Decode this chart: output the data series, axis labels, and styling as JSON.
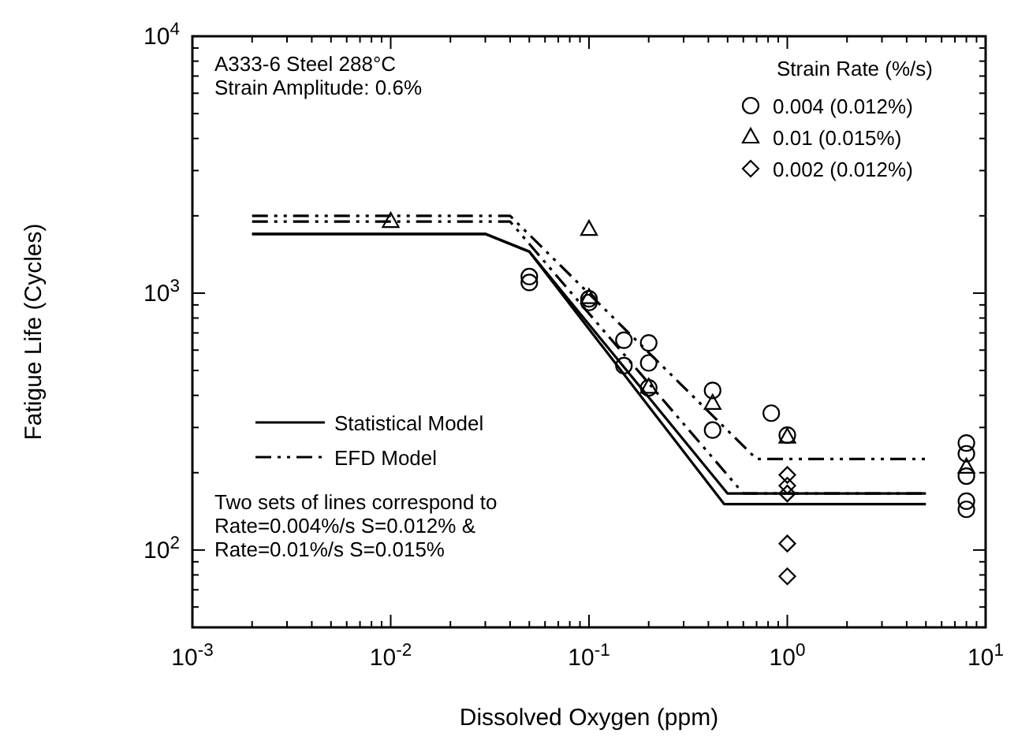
{
  "chart_data": {
    "type": "scatter",
    "xlabel": "Dissolved Oxygen (ppm)",
    "ylabel": "Fatigue Life (Cycles)",
    "legend_title": "Strain Rate (%/s)",
    "log": "xy",
    "legend": "top right",
    "grid": false,
    "xlim": [
      0.001,
      10
    ],
    "ylim": [
      50,
      10000
    ],
    "xticks": [
      {
        "value": 0.001,
        "label": "10$^{-3}$"
      },
      {
        "value": 0.002,
        "label": null
      },
      {
        "value": 0.003,
        "label": null
      },
      {
        "value": 0.004,
        "label": null
      },
      {
        "value": 0.005,
        "label": null
      },
      {
        "value": 0.006,
        "label": null
      },
      {
        "value": 0.007,
        "label": null
      },
      {
        "value": 0.008,
        "label": null
      },
      {
        "value": 0.009,
        "label": null
      },
      {
        "value": 0.01,
        "label": "10$^{-2}$"
      },
      {
        "value": 0.02,
        "label": null
      },
      {
        "value": 0.03,
        "label": null
      },
      {
        "value": 0.04,
        "label": null
      },
      {
        "value": 0.05,
        "label": null
      },
      {
        "value": 0.06,
        "label": null
      },
      {
        "value": 0.07,
        "label": null
      },
      {
        "value": 0.08,
        "label": null
      },
      {
        "value": 0.09,
        "label": null
      },
      {
        "value": 0.1,
        "label": "10$^{-1}$"
      },
      {
        "value": 0.2,
        "label": null
      },
      {
        "value": 0.3,
        "label": null
      },
      {
        "value": 0.4,
        "label": null
      },
      {
        "value": 0.5,
        "label": null
      },
      {
        "value": 0.6,
        "label": null
      },
      {
        "value": 0.7,
        "label": null
      },
      {
        "value": 0.8,
        "label": null
      },
      {
        "value": 0.9,
        "label": null
      },
      {
        "value": 1,
        "label": "10$^{0}$"
      },
      {
        "value": 2,
        "label": null
      },
      {
        "value": 3,
        "label": null
      },
      {
        "value": 4,
        "label": null
      },
      {
        "value": 5,
        "label": null
      },
      {
        "value": 6,
        "label": null
      },
      {
        "value": 7,
        "label": null
      },
      {
        "value": 8,
        "label": null
      },
      {
        "value": 9,
        "label": null
      },
      {
        "value": 10,
        "label": "10$^{1}$"
      }
    ],
    "yticks": [
      {
        "value": 60,
        "label": null
      },
      {
        "value": 70,
        "label": null
      },
      {
        "value": 80,
        "label": null
      },
      {
        "value": 90,
        "label": null
      },
      {
        "value": 100,
        "label": "10$^{2}$"
      },
      {
        "value": 200,
        "label": null
      },
      {
        "value": 300,
        "label": null
      },
      {
        "value": 400,
        "label": null
      },
      {
        "value": 500,
        "label": null
      },
      {
        "value": 600,
        "label": null
      },
      {
        "value": 700,
        "label": null
      },
      {
        "value": 800,
        "label": null
      },
      {
        "value": 900,
        "label": null
      },
      {
        "value": 1000,
        "label": "10$^{3}$"
      },
      {
        "value": 2000,
        "label": null
      },
      {
        "value": 3000,
        "label": null
      },
      {
        "value": 4000,
        "label": null
      },
      {
        "value": 5000,
        "label": null
      },
      {
        "value": 6000,
        "label": null
      },
      {
        "value": 7000,
        "label": null
      },
      {
        "value": 8000,
        "label": null
      },
      {
        "value": 9000,
        "label": null
      },
      {
        "value": 10000,
        "label": "10$^{4}$"
      }
    ],
    "annotations": [
      "A333-6 Steel 288°C",
      "Strain Amplitude: 0.6%",
      "Two sets of lines correspond to",
      "Rate=0.004%/s  S=0.012% &",
      "Rate=0.01%/s  S=0.015%"
    ],
    "series": [
      {
        "name": "0.004 (0.012%)",
        "marker": "circle",
        "color": "#000000",
        "x": [
          0.05,
          0.05,
          0.1,
          0.1,
          0.15,
          0.2,
          0.15,
          0.2,
          0.2,
          0.42,
          0.42,
          0.83,
          1,
          8,
          8,
          8,
          8,
          8
        ],
        "values": [
          1100,
          1160,
          950,
          920,
          656,
          640,
          522,
          535,
          428,
          418,
          293,
          341,
          280,
          261,
          237,
          194,
          155,
          144
        ]
      },
      {
        "name": "0.01 (0.015%)",
        "marker": "triangle",
        "color": "#000000",
        "x": [
          0.01,
          0.1,
          0.1,
          0.2,
          0.42,
          1,
          8
        ],
        "values": [
          1900,
          1770,
          960,
          430,
          372,
          275,
          210
        ]
      },
      {
        "name": "0.002 (0.012%)",
        "marker": "diamond",
        "color": "#000000",
        "x": [
          1,
          1,
          1,
          1,
          1
        ],
        "values": [
          196,
          178,
          166,
          106,
          79
        ]
      },
      {
        "name": "Statistical Model",
        "type": "line",
        "line_style": "solid",
        "marker": "none",
        "color": "#000000",
        "x": [
          0.002,
          0.03,
          0.05,
          0.5,
          5
        ],
        "values": [
          1700,
          1700,
          1450,
          166,
          166
        ]
      },
      {
        "type": "line",
        "line_style": "solid",
        "marker": "none",
        "color": "#000000",
        "x": [
          0.002,
          0.03,
          0.05,
          0.48,
          5
        ],
        "values": [
          1700,
          1700,
          1450,
          151,
          151
        ]
      },
      {
        "name": "EFD Model",
        "type": "line",
        "line_style": "dashed",
        "marker": "none",
        "color": "#000000",
        "x": [
          0.002,
          0.04,
          0.7,
          5
        ],
        "values": [
          2000,
          2000,
          226,
          226
        ]
      },
      {
        "type": "line",
        "line_style": "dashed",
        "marker": "none",
        "color": "#000000",
        "x": [
          0.002,
          0.04,
          0.6,
          5
        ],
        "values": [
          1900,
          1900,
          166,
          166
        ]
      }
    ]
  }
}
